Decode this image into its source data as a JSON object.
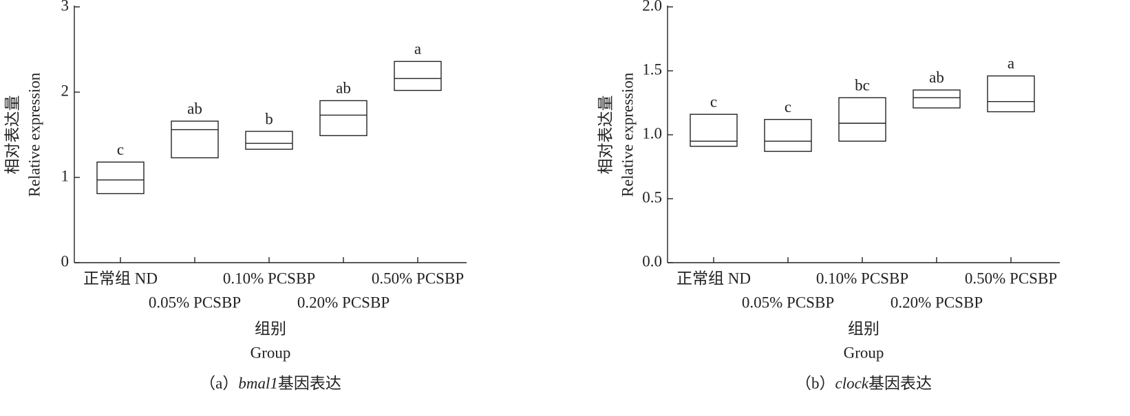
{
  "chart_data": [
    {
      "type": "box",
      "caption": {
        "prefix": "（a）",
        "gene": "bmal1",
        "suffix": "基因表达"
      },
      "y_label": [
        "相对表达量",
        "Relative expression"
      ],
      "x_label": [
        "组别",
        "Group"
      ],
      "categories": [
        "正常组 ND",
        "0.05% PCSBP",
        "0.10% PCSBP",
        "0.20% PCSBP",
        "0.50% PCSBP"
      ],
      "lows": [
        0.81,
        1.23,
        1.33,
        1.49,
        2.02
      ],
      "medians": [
        0.97,
        1.56,
        1.4,
        1.73,
        2.16
      ],
      "highs": [
        1.18,
        1.66,
        1.54,
        1.9,
        2.36
      ],
      "annotations": [
        "c",
        "ab",
        "b",
        "ab",
        "a"
      ],
      "ylim": [
        0,
        3
      ],
      "yticks": [
        0,
        1,
        2,
        3
      ]
    },
    {
      "type": "box",
      "caption": {
        "prefix": "（b）",
        "gene": "clock",
        "suffix": "基因表达"
      },
      "y_label": [
        "相对表达量",
        "Relative expression"
      ],
      "x_label": [
        "组别",
        "Group"
      ],
      "categories": [
        "正常组 ND",
        "0.05% PCSBP",
        "0.10% PCSBP",
        "0.20% PCSBP",
        "0.50% PCSBP"
      ],
      "lows": [
        0.91,
        0.87,
        0.95,
        1.21,
        1.18
      ],
      "medians": [
        0.95,
        0.95,
        1.09,
        1.29,
        1.26
      ],
      "highs": [
        1.16,
        1.12,
        1.29,
        1.35,
        1.46
      ],
      "annotations": [
        "c",
        "c",
        "bc",
        "ab",
        "a"
      ],
      "ylim": [
        0,
        2
      ],
      "yticks": [
        {
          "value": 0,
          "label": "0.0"
        },
        0.5,
        {
          "value": 1,
          "label": "1.0"
        },
        1.5,
        {
          "value": 2,
          "label": "2.0"
        }
      ]
    }
  ]
}
